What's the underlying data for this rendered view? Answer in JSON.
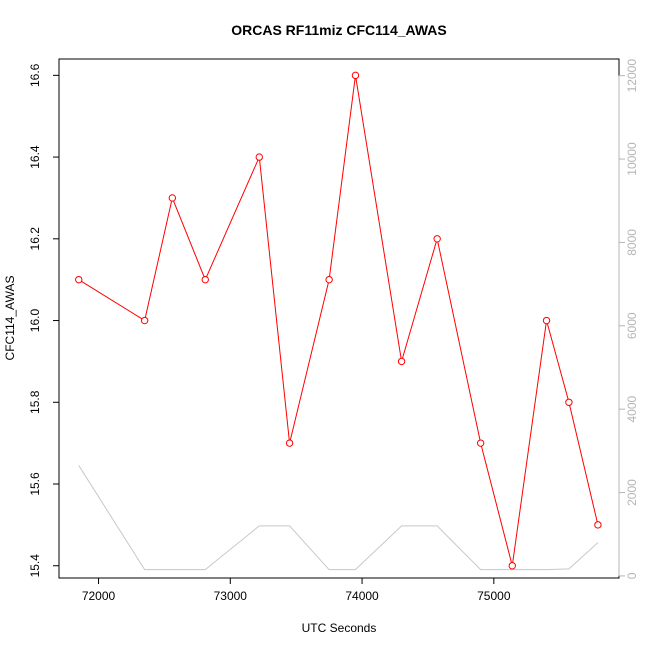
{
  "chart_data": {
    "type": "line",
    "title": "ORCAS RF11miz CFC114_AWAS",
    "xlabel": "UTC Seconds",
    "ylabel": "CFC114_AWAS",
    "y2label": "",
    "xlim": [
      71700,
      75950
    ],
    "ylim": [
      15.37,
      16.64
    ],
    "y2lim": [
      -50,
      12400
    ],
    "x_ticks": [
      72000,
      73000,
      74000,
      75000
    ],
    "x_tick_labels": [
      "72000",
      "73000",
      "74000",
      "75000"
    ],
    "y_ticks": [
      15.4,
      15.6,
      15.8,
      16.0,
      16.2,
      16.4,
      16.6
    ],
    "y_tick_labels": [
      "15.4",
      "15.6",
      "15.8",
      "16.0",
      "16.2",
      "16.4",
      "16.6"
    ],
    "y2_ticks": [
      0,
      2000,
      4000,
      6000,
      8000,
      10000,
      12000
    ],
    "y2_tick_labels": [
      "0",
      "2000",
      "4000",
      "6000",
      "8000",
      "10000",
      "12000"
    ],
    "grid": false,
    "series": [
      {
        "axis": "left",
        "color": "#ff0000",
        "marker": "open-circle",
        "x": [
          71850,
          72350,
          72560,
          72810,
          73220,
          73450,
          73750,
          73950,
          74300,
          74570,
          74900,
          75140,
          75400,
          75570,
          75790
        ],
        "values": [
          16.1,
          16.0,
          16.3,
          16.1,
          16.4,
          15.7,
          16.1,
          16.6,
          15.9,
          16.2,
          15.7,
          15.4,
          16.0,
          15.8,
          15.5
        ]
      },
      {
        "axis": "right",
        "color": "#c8c8c8",
        "marker": "none",
        "x": [
          71850,
          72350,
          72560,
          72810,
          73220,
          73450,
          73750,
          73950,
          74300,
          74570,
          74900,
          75140,
          75400,
          75570,
          75790
        ],
        "values": [
          2650,
          150,
          150,
          150,
          1200,
          1200,
          150,
          150,
          1200,
          1200,
          150,
          150,
          150,
          170,
          800
        ]
      }
    ]
  }
}
